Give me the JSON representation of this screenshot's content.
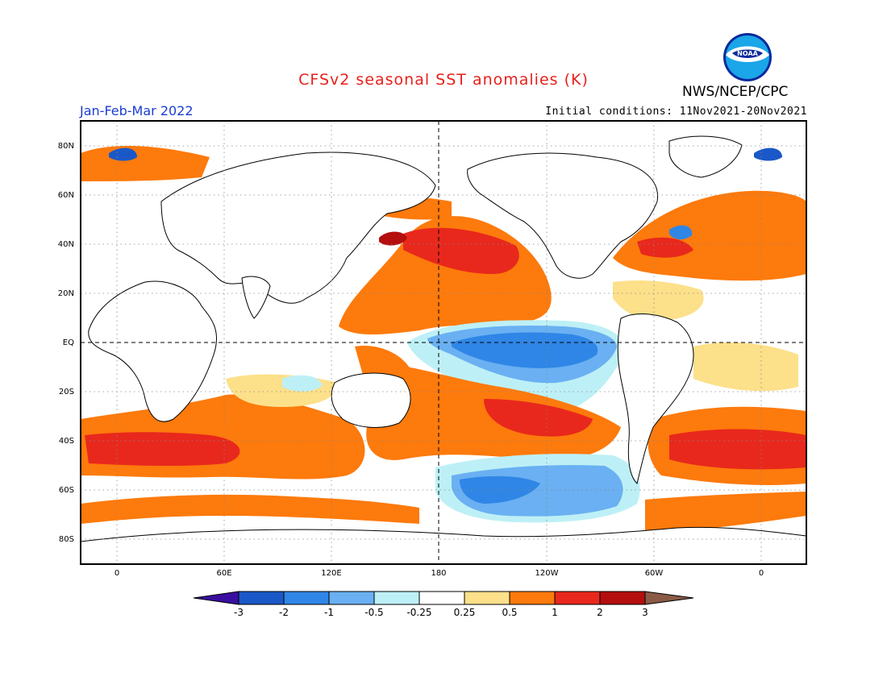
{
  "header": {
    "title": "CFSv2 seasonal SST anomalies (K)",
    "agency": "NWS/NCEP/CPC",
    "logo_text": "NOAA",
    "period": "Jan-Feb-Mar 2022",
    "initial_conditions": "Initial conditions: 11Nov2021-20Nov2021"
  },
  "map": {
    "lat_labels": [
      "80N",
      "60N",
      "40N",
      "20N",
      "EQ",
      "20S",
      "40S",
      "60S",
      "80S"
    ],
    "lon_labels": [
      "0",
      "60E",
      "120E",
      "180",
      "120W",
      "60W",
      "0"
    ]
  },
  "colorbar": {
    "ticks": [
      "-3",
      "-2",
      "-1",
      "-0.5",
      "-0.25",
      "0.25",
      "0.5",
      "1",
      "2",
      "3"
    ],
    "colors": [
      "#3a0ea0",
      "#1a58c8",
      "#2f86e6",
      "#6ab0f2",
      "#bdf0f6",
      "#ffffff",
      "#fce08a",
      "#fd7a0c",
      "#e8281c",
      "#b40e0e",
      "#8a5a46"
    ]
  },
  "palette": {
    "title_color": "#e8201c",
    "period_color": "#1c3ccf",
    "land": "#ffffff",
    "dark_red": "#b40e0e",
    "red": "#e8281c",
    "orange": "#fd7a0c",
    "yellow": "#fce08a",
    "light_cyan": "#bdf0f6",
    "light_blue": "#6ab0f2",
    "blue": "#2f86e6",
    "deep_blue": "#1a58c8"
  }
}
